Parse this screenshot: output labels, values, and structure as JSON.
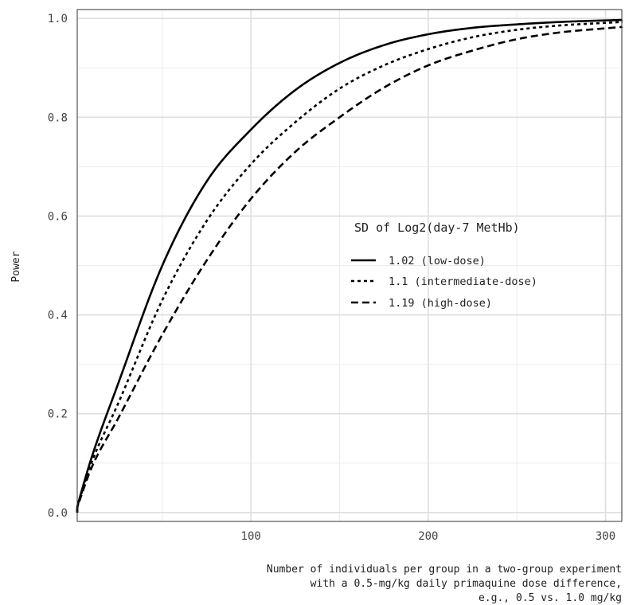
{
  "chart_data": {
    "type": "line",
    "xlabel_lines": [
      "Number of individuals per group in a two-group experiment",
      "with a 0.5-mg/kg daily primaquine dose difference,",
      "e.g., 0.5 vs. 1.0 mg/kg"
    ],
    "ylabel": "Power",
    "xlim": [
      1,
      310
    ],
    "ylim": [
      0,
      1
    ],
    "xticks": [
      100,
      200,
      300
    ],
    "yticks": [
      0.0,
      0.2,
      0.4,
      0.6,
      0.8,
      1.0
    ],
    "ytick_labels": [
      "0.0",
      "0.2",
      "0.4",
      "0.6",
      "0.8",
      "1.0"
    ],
    "grid": true,
    "legend": {
      "title": "SD of Log2(day-7 MetHb)",
      "position": "center-right"
    },
    "series": [
      {
        "name": "1.02 (low-dose)",
        "line_style": "solid",
        "x": [
          1,
          10,
          25,
          50,
          75,
          100,
          125,
          150,
          175,
          200,
          225,
          250,
          275,
          300,
          310
        ],
        "y": [
          0.0,
          0.11,
          0.26,
          0.5,
          0.67,
          0.775,
          0.855,
          0.91,
          0.946,
          0.968,
          0.981,
          0.988,
          0.993,
          0.996,
          0.997
        ]
      },
      {
        "name": "1.1 (intermediate-dose)",
        "line_style": "dotted",
        "x": [
          1,
          10,
          25,
          50,
          75,
          100,
          125,
          150,
          175,
          200,
          225,
          250,
          275,
          300,
          310
        ],
        "y": [
          0.0,
          0.1,
          0.22,
          0.43,
          0.59,
          0.705,
          0.79,
          0.858,
          0.905,
          0.938,
          0.962,
          0.977,
          0.986,
          0.991,
          0.993
        ]
      },
      {
        "name": "1.19 (high-dose)",
        "line_style": "dashed",
        "x": [
          1,
          10,
          25,
          50,
          75,
          100,
          125,
          150,
          175,
          200,
          225,
          250,
          275,
          300,
          310
        ],
        "y": [
          0.0,
          0.09,
          0.19,
          0.36,
          0.51,
          0.635,
          0.73,
          0.8,
          0.86,
          0.905,
          0.935,
          0.958,
          0.972,
          0.98,
          0.983
        ]
      }
    ]
  }
}
